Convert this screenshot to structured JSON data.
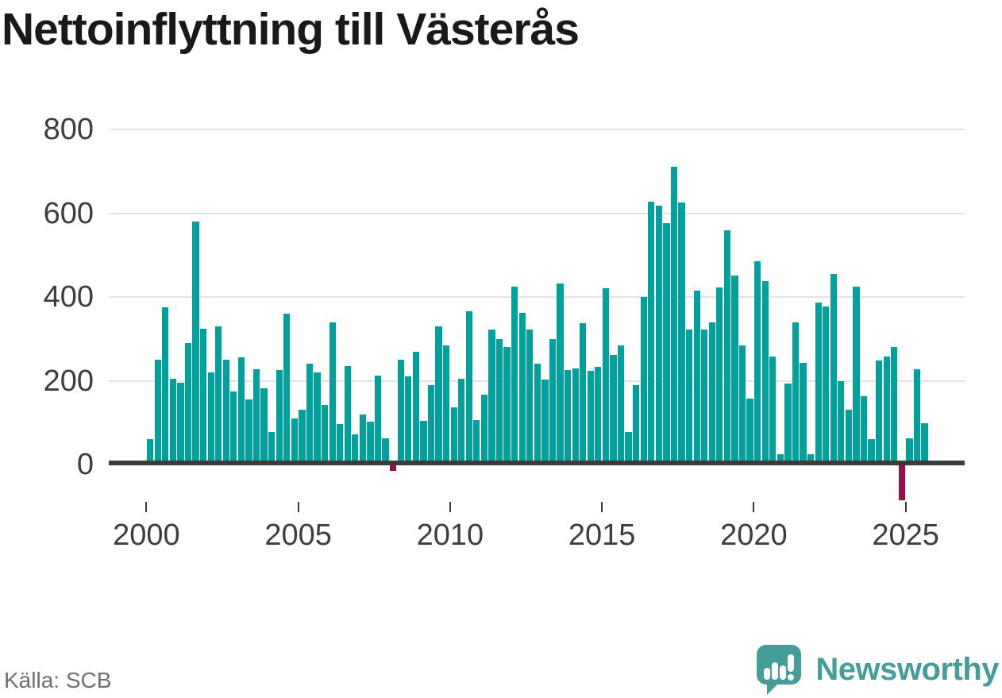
{
  "title_block": {
    "title": "Nettoinflyttning till Västerås"
  },
  "source": "Källa: SCB",
  "logo": {
    "wordmark": "Newsworthy",
    "icon": "speech-bubble-bar-chart-exclamation"
  },
  "colors": {
    "bar": "#00a19c",
    "negative": "#9c0d47",
    "grid": "#e4e4e4",
    "axis": "#3b3b3b",
    "tick_label": "#3d3d3d",
    "source_text": "#6f6f6f",
    "logo": "#459d99",
    "title": "#191919",
    "background": "#ffffff"
  },
  "chart_data": {
    "type": "bar",
    "title": "Nettoinflyttning till Västerås",
    "x_unit": "quarter",
    "x_start": {
      "year": 2000,
      "quarter": 1
    },
    "x_end": {
      "year": 2025,
      "quarter": 3
    },
    "x_tick_labels": [
      "2000",
      "2005",
      "2010",
      "2015",
      "2020",
      "2025"
    ],
    "y_ticks": [
      0,
      200,
      400,
      600,
      800
    ],
    "ylim": [
      -100,
      800
    ],
    "grid": "horizontal",
    "legend": "none",
    "values": [
      60,
      250,
      375,
      205,
      195,
      290,
      580,
      325,
      220,
      330,
      250,
      175,
      255,
      155,
      227,
      182,
      77,
      225,
      360,
      110,
      130,
      240,
      220,
      143,
      340,
      97,
      235,
      72,
      120,
      102,
      212,
      62,
      -15,
      250,
      210,
      270,
      105,
      190,
      330,
      285,
      137,
      205,
      365,
      107,
      167,
      323,
      300,
      280,
      425,
      362,
      322,
      240,
      203,
      300,
      433,
      226,
      230,
      338,
      224,
      233,
      420,
      262,
      285,
      78,
      190,
      400,
      628,
      618,
      577,
      710,
      625,
      322,
      415,
      323,
      340,
      423,
      560,
      452,
      285,
      158,
      485,
      438,
      257,
      25,
      194,
      340,
      242,
      25,
      387,
      377,
      455,
      200,
      130,
      425,
      163,
      60,
      248,
      257,
      280,
      -85,
      62,
      228,
      99
    ]
  }
}
